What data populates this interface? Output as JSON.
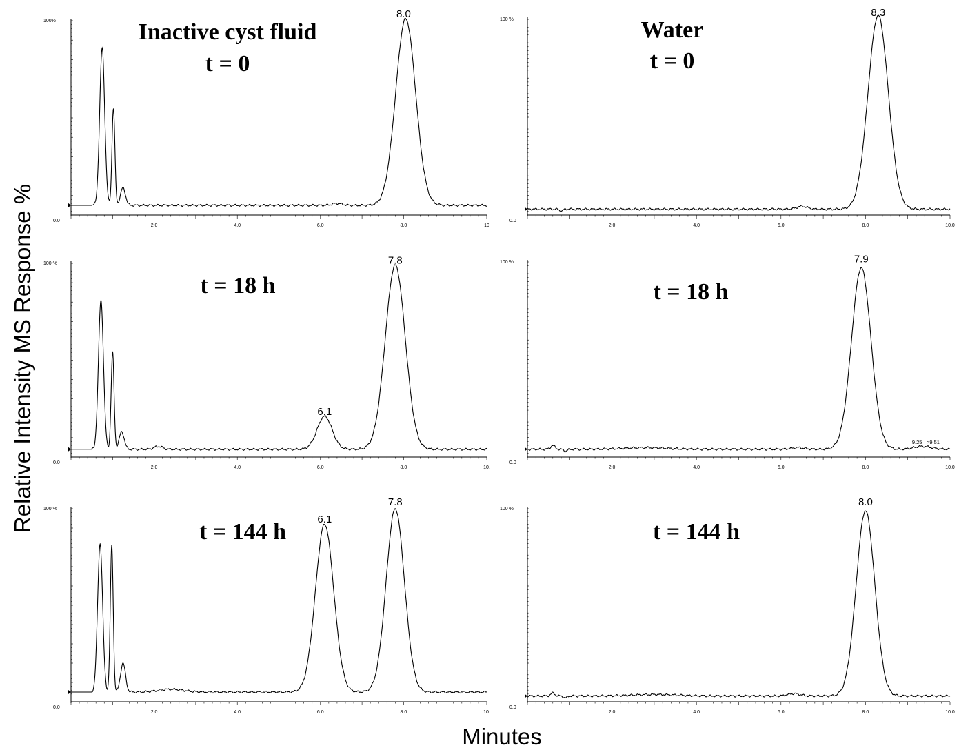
{
  "figure": {
    "ylabel": "Relative Intensity MS Response %",
    "xlabel": "Minutes"
  },
  "chart_data": [
    {
      "type": "line",
      "titles": [
        "Inactive cyst fluid",
        "t = 0"
      ],
      "y_top_label": "100%",
      "y_bottom_label": "0.0",
      "xlim": [
        0,
        10
      ],
      "ylim": [
        0,
        100
      ],
      "x_tick_labels": [
        "2.0",
        "4.0",
        "6.0",
        "8.0",
        "10"
      ],
      "baseline": 5,
      "start": 0.5,
      "peaks": [
        [
          0.75,
          81,
          0.06
        ],
        [
          1.02,
          50,
          0.035
        ],
        [
          1.25,
          9,
          0.06
        ],
        [
          6.4,
          1,
          0.12
        ],
        [
          8.05,
          96,
          0.24
        ]
      ],
      "peak_labels": [
        {
          "text": "8.0",
          "x": 8.0,
          "y": 100
        }
      ],
      "extra_labels": []
    },
    {
      "type": "line",
      "titles": [
        "Water",
        "t = 0"
      ],
      "y_top_label": "100 %",
      "y_bottom_label": "0.0",
      "xlim": [
        0,
        10
      ],
      "ylim": [
        0,
        100
      ],
      "x_tick_labels": [
        "2.0",
        "4.0",
        "6.0",
        "8.0",
        "10.0"
      ],
      "baseline": 3,
      "start": 0,
      "peaks": [
        [
          0.8,
          -1,
          0.04
        ],
        [
          6.5,
          1.5,
          0.12
        ],
        [
          8.3,
          99,
          0.24
        ]
      ],
      "peak_labels": [
        {
          "text": "8.3",
          "x": 8.3,
          "y": 100
        }
      ],
      "extra_labels": []
    },
    {
      "type": "line",
      "titles": [
        "t = 18 h"
      ],
      "y_top_label": "100 %",
      "y_bottom_label": "0.0",
      "xlim": [
        0,
        10
      ],
      "ylim": [
        0,
        100
      ],
      "x_tick_labels": [
        "2.0",
        "4.0",
        "6.0",
        "8.0",
        "10."
      ],
      "baseline": 4,
      "start": 0.5,
      "peaks": [
        [
          0.72,
          77,
          0.06
        ],
        [
          1.0,
          50,
          0.035
        ],
        [
          1.22,
          9,
          0.06
        ],
        [
          2.1,
          1.5,
          0.1
        ],
        [
          6.1,
          17,
          0.18
        ],
        [
          7.8,
          95,
          0.24
        ]
      ],
      "peak_labels": [
        {
          "text": "6.1",
          "x": 6.1,
          "y": 20
        },
        {
          "text": "7.8",
          "x": 7.8,
          "y": 98
        }
      ],
      "extra_labels": []
    },
    {
      "type": "line",
      "titles": [
        "t = 18 h"
      ],
      "y_top_label": "100 %",
      "y_bottom_label": "0.0",
      "xlim": [
        0,
        10
      ],
      "ylim": [
        0,
        100
      ],
      "x_tick_labels": [
        "2.0",
        "4.0",
        "6.0",
        "8.0",
        "10.0"
      ],
      "baseline": 4,
      "start": 0,
      "peaks": [
        [
          0.6,
          2,
          0.05
        ],
        [
          0.9,
          -1,
          0.04
        ],
        [
          2.8,
          0.8,
          0.5
        ],
        [
          6.4,
          0.8,
          0.15
        ],
        [
          7.9,
          93,
          0.23
        ],
        [
          9.35,
          1.5,
          0.2
        ]
      ],
      "peak_labels": [
        {
          "text": "7.9",
          "x": 7.9,
          "y": 98
        }
      ],
      "extra_labels": [
        {
          "text": "9.25",
          "x": 9.22,
          "y": 6
        },
        {
          "text": ">9.51",
          "x": 9.6,
          "y": 6
        }
      ]
    },
    {
      "type": "line",
      "titles": [
        "t = 144 h"
      ],
      "y_top_label": "100 %",
      "y_bottom_label": "0.0",
      "xlim": [
        0,
        10
      ],
      "ylim": [
        0,
        100
      ],
      "x_tick_labels": [
        "2.0",
        "4.0",
        "6.0",
        "8.0",
        "10."
      ],
      "baseline": 5,
      "start": 0.5,
      "peaks": [
        [
          0.7,
          77,
          0.06
        ],
        [
          0.98,
          76,
          0.035
        ],
        [
          1.25,
          15,
          0.06
        ],
        [
          2.4,
          1.5,
          0.3
        ],
        [
          6.1,
          87,
          0.22
        ],
        [
          7.8,
          95,
          0.22
        ]
      ],
      "peak_labels": [
        {
          "text": "6.1",
          "x": 6.1,
          "y": 91
        },
        {
          "text": "7.8",
          "x": 7.8,
          "y": 100
        }
      ],
      "extra_labels": []
    },
    {
      "type": "line",
      "titles": [
        "t = 144 h"
      ],
      "y_top_label": "100 %",
      "y_bottom_label": "0.0",
      "xlim": [
        0,
        10
      ],
      "ylim": [
        0,
        100
      ],
      "x_tick_labels": [
        "2.0",
        "4.0",
        "6.0",
        "8.0",
        "10.0"
      ],
      "baseline": 3,
      "start": 0,
      "peaks": [
        [
          0.6,
          1.5,
          0.05
        ],
        [
          0.9,
          -1,
          0.04
        ],
        [
          3.0,
          0.8,
          0.5
        ],
        [
          6.3,
          1.2,
          0.15
        ],
        [
          8.0,
          96,
          0.22
        ]
      ],
      "peak_labels": [
        {
          "text": "8.0",
          "x": 8.0,
          "y": 100
        }
      ],
      "extra_labels": []
    }
  ]
}
